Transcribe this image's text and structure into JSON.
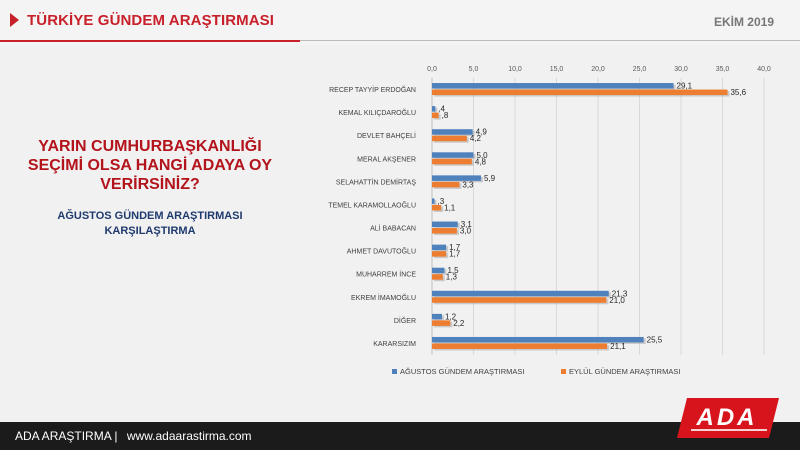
{
  "header": {
    "title": "TÜRKİYE GÜNDEM ARAŞTIRMASI",
    "date": "EKİM 2019"
  },
  "question": "YARIN CUMHURBAŞKANLIĞI SEÇİMİ OLSA HANGİ ADAYA OY VERİRSİNİZ?",
  "subtitle": "AĞUSTOS GÜNDEM ARAŞTIRMASI KARŞILAŞTIRMA",
  "footer": {
    "brand": "ADA ARAŞTIRMA |",
    "url": "www.adaarastirma.com"
  },
  "logo": {
    "text": "ADA"
  },
  "colors": {
    "accent": "#c8202a",
    "series1": "#4f81bd",
    "series2": "#ed7d31",
    "navy": "#1f3a6e"
  },
  "chart_data": {
    "type": "bar",
    "orientation": "horizontal",
    "categories": [
      "RECEP TAYYİP ERDOĞAN",
      "KEMAL KILIÇDAROĞLU",
      "DEVLET BAHÇELİ",
      "MERAL AKŞENER",
      "SELAHATTİN DEMİRTAŞ",
      "TEMEL KARAMOLLAOĞLU",
      "ALİ BABACAN",
      "AHMET DAVUTOĞLU",
      "MUHARREM İNCE",
      "EKREM İMAMOĞLU",
      "DİĞER",
      "KARARSIZIM"
    ],
    "series": [
      {
        "name": "AĞUSTOS GÜNDEM ARAŞTIRMASI",
        "values": [
          29.1,
          0.4,
          4.9,
          5.0,
          5.9,
          0.3,
          3.1,
          1.7,
          1.5,
          21.3,
          1.2,
          25.5
        ],
        "labels": [
          "29,1",
          ",4",
          "4,9",
          "5,0",
          "5,9",
          ",3",
          "3,1",
          "1,7",
          "1,5",
          "21,3",
          "1,2",
          "25,5"
        ]
      },
      {
        "name": "EYLÜL GÜNDEM ARAŞTIRMASI",
        "values": [
          35.6,
          0.8,
          4.2,
          4.8,
          3.3,
          1.1,
          3.0,
          1.7,
          1.3,
          21.0,
          2.2,
          21.1
        ],
        "labels": [
          "35,6",
          ",8",
          "4,2",
          "4,8",
          "3,3",
          "1,1",
          "3,0",
          "1,7",
          "1,3",
          "21,0",
          "2,2",
          "21,1"
        ]
      }
    ],
    "xlim": [
      0,
      40
    ],
    "ticks": [
      "0,0",
      "5,0",
      "10,0",
      "15,0",
      "20,0",
      "25,0",
      "30,0",
      "35,0",
      "40,0"
    ],
    "grid": true,
    "legend": "bottom"
  }
}
